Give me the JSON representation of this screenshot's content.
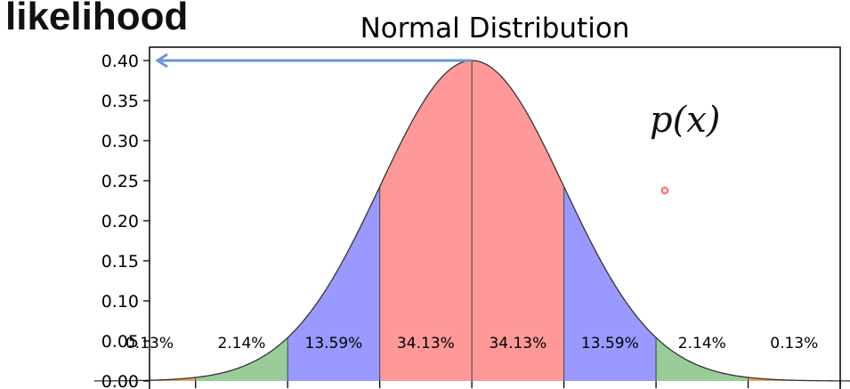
{
  "overlay": {
    "likelihood_label": "likelihood",
    "formula_label": "p(x)",
    "arrow_color": "#6a97d6"
  },
  "chart_data": {
    "type": "area",
    "title": "Normal Distribution",
    "xlabel": "",
    "ylabel": "",
    "xlim": [
      -3.5,
      4.0
    ],
    "ylim": [
      0.0,
      0.4
    ],
    "ytick_labels": [
      "0.00",
      "0.05",
      "0.10",
      "0.15",
      "0.20",
      "0.25",
      "0.30",
      "0.35",
      "0.40"
    ],
    "ytick_values": [
      0.0,
      0.05,
      0.1,
      0.15,
      0.2,
      0.25,
      0.3,
      0.35,
      0.4
    ],
    "xtick_values": [
      -4,
      -3,
      -2,
      -1,
      0,
      1,
      2,
      3,
      4
    ],
    "mean": 0,
    "std": 1,
    "peak_value": 0.4,
    "bands": [
      {
        "from": -4,
        "to": -3,
        "percent": "0.13%",
        "color": "#f0a050"
      },
      {
        "from": -3,
        "to": -2,
        "percent": "2.14%",
        "color": "#99cc99"
      },
      {
        "from": -2,
        "to": -1,
        "percent": "13.59%",
        "color": "#9999ff"
      },
      {
        "from": -1,
        "to": 0,
        "percent": "34.13%",
        "color": "#ff9999"
      },
      {
        "from": 0,
        "to": 1,
        "percent": "34.13%",
        "color": "#ff9999"
      },
      {
        "from": 1,
        "to": 2,
        "percent": "13.59%",
        "color": "#9999ff"
      },
      {
        "from": 2,
        "to": 3,
        "percent": "2.14%",
        "color": "#99cc99"
      },
      {
        "from": 3,
        "to": 4,
        "percent": "0.13%",
        "color": "#f0a050"
      }
    ],
    "grid": false,
    "legend": "none"
  }
}
